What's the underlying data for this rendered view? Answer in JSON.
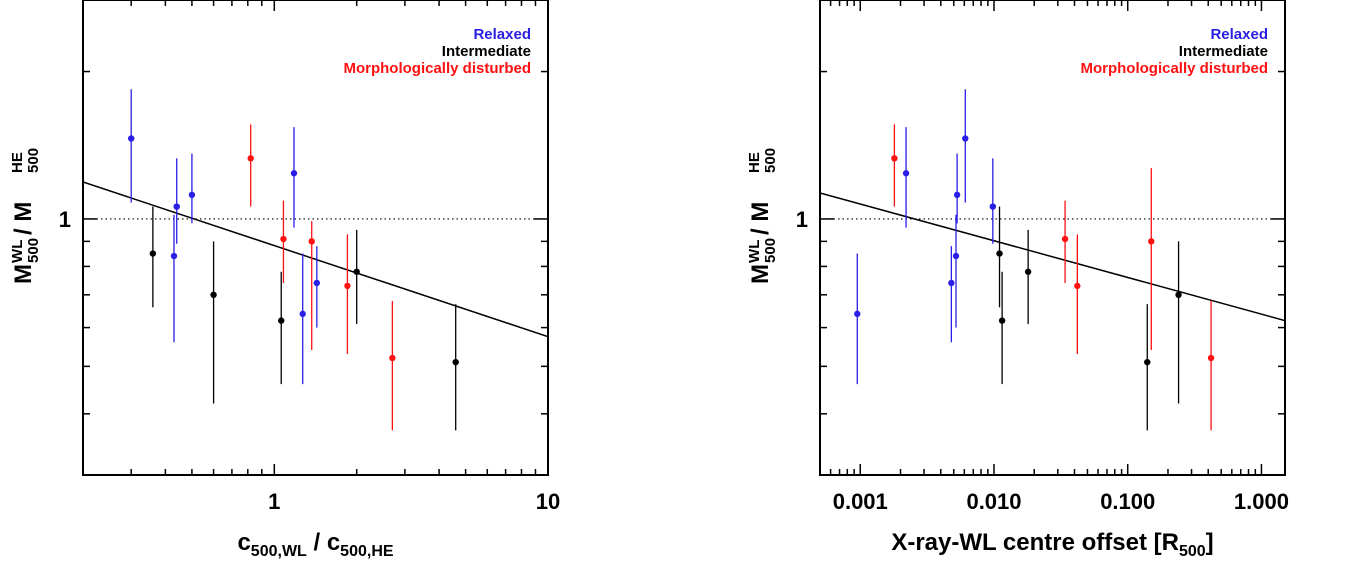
{
  "chart_data": [
    {
      "type": "scatter",
      "xscale": "log",
      "yscale": "log",
      "xlim": [
        0.2,
        10
      ],
      "ylim": [
        0.3,
        2.8
      ],
      "x_ticks": [
        1,
        10
      ],
      "x_tick_labels": [
        "1",
        "10"
      ],
      "y_ticks": [
        1
      ],
      "y_tick_labels": [
        "1"
      ],
      "xlabel": {
        "main": "c",
        "sub1": "500,WL",
        "mid": " / c",
        "sub2": "500,HE"
      },
      "ylabel": {
        "m1": "M",
        "sup1": "WL",
        "sub1": "500",
        "mid": "  / M",
        "sup2": "HE",
        "sub2": "500"
      },
      "reference_line_y": 1,
      "fit_line": {
        "x": [
          0.2,
          10
        ],
        "y": [
          1.19,
          0.575
        ]
      },
      "legend": [
        {
          "name": "Relaxed",
          "color": "#2a1fe6"
        },
        {
          "name": "Intermediate",
          "color": "#000000"
        },
        {
          "name": "Morphologically disturbed",
          "color": "#ff1111"
        }
      ],
      "legend_position": "top-right",
      "series": [
        {
          "name": "Relaxed",
          "color": "#2a1fe6",
          "points": [
            {
              "x": 0.3,
              "y": 1.46,
              "ylo": 1.08,
              "yhi": 1.84
            },
            {
              "x": 0.43,
              "y": 0.84,
              "ylo": 0.56,
              "yhi": 1.02
            },
            {
              "x": 0.44,
              "y": 1.06,
              "ylo": 0.89,
              "yhi": 1.33
            },
            {
              "x": 0.5,
              "y": 1.12,
              "ylo": 0.98,
              "yhi": 1.36
            },
            {
              "x": 1.18,
              "y": 1.24,
              "ylo": 0.96,
              "yhi": 1.54
            },
            {
              "x": 1.27,
              "y": 0.64,
              "ylo": 0.46,
              "yhi": 0.85
            },
            {
              "x": 1.43,
              "y": 0.74,
              "ylo": 0.6,
              "yhi": 0.88
            }
          ]
        },
        {
          "name": "Intermediate",
          "color": "#000000",
          "points": [
            {
              "x": 0.36,
              "y": 0.85,
              "ylo": 0.66,
              "yhi": 1.06
            },
            {
              "x": 0.6,
              "y": 0.7,
              "ylo": 0.42,
              "yhi": 0.9
            },
            {
              "x": 1.06,
              "y": 0.62,
              "ylo": 0.46,
              "yhi": 0.78
            },
            {
              "x": 2.0,
              "y": 0.78,
              "ylo": 0.61,
              "yhi": 0.95
            },
            {
              "x": 4.6,
              "y": 0.51,
              "ylo": 0.37,
              "yhi": 0.67
            }
          ]
        },
        {
          "name": "Morphologically disturbed",
          "color": "#ff1111",
          "points": [
            {
              "x": 0.82,
              "y": 1.33,
              "ylo": 1.06,
              "yhi": 1.56
            },
            {
              "x": 1.08,
              "y": 0.91,
              "ylo": 0.74,
              "yhi": 1.09
            },
            {
              "x": 1.37,
              "y": 0.9,
              "ylo": 0.54,
              "yhi": 0.99
            },
            {
              "x": 1.85,
              "y": 0.73,
              "ylo": 0.53,
              "yhi": 0.93
            },
            {
              "x": 2.7,
              "y": 0.52,
              "ylo": 0.37,
              "yhi": 0.68
            }
          ]
        }
      ]
    },
    {
      "type": "scatter",
      "xscale": "log",
      "yscale": "log",
      "xlim": [
        0.0005,
        1.5
      ],
      "ylim": [
        0.3,
        2.8
      ],
      "x_ticks": [
        0.001,
        0.01,
        0.1,
        1
      ],
      "x_tick_labels": [
        "0.001",
        "0.010",
        "0.100",
        "1.000"
      ],
      "y_ticks": [
        1
      ],
      "y_tick_labels": [
        "1"
      ],
      "xlabel": {
        "main": "X-ray-WL centre offset [R",
        "sub1": "500",
        "mid": "]",
        "sub2": ""
      },
      "ylabel": {
        "m1": "M",
        "sup1": "WL",
        "sub1": "500",
        "mid": "  / M",
        "sup2": "HE",
        "sub2": "500"
      },
      "reference_line_y": 1,
      "fit_line": {
        "x": [
          0.0005,
          1.5
        ],
        "y": [
          1.13,
          0.62
        ]
      },
      "legend": [
        {
          "name": "Relaxed",
          "color": "#2a1fe6"
        },
        {
          "name": "Intermediate",
          "color": "#000000"
        },
        {
          "name": "Morphologically disturbed",
          "color": "#ff1111"
        }
      ],
      "legend_position": "top-right",
      "series": [
        {
          "name": "Relaxed",
          "color": "#2a1fe6",
          "points": [
            {
              "x": 0.00095,
              "y": 0.64,
              "ylo": 0.46,
              "yhi": 0.85
            },
            {
              "x": 0.0022,
              "y": 1.24,
              "ylo": 0.96,
              "yhi": 1.54
            },
            {
              "x": 0.0048,
              "y": 0.74,
              "ylo": 0.56,
              "yhi": 0.88
            },
            {
              "x": 0.0052,
              "y": 0.84,
              "ylo": 0.6,
              "yhi": 1.02
            },
            {
              "x": 0.0053,
              "y": 1.12,
              "ylo": 0.98,
              "yhi": 1.36
            },
            {
              "x": 0.0061,
              "y": 1.46,
              "ylo": 1.08,
              "yhi": 1.84
            },
            {
              "x": 0.0098,
              "y": 1.06,
              "ylo": 0.89,
              "yhi": 1.33
            }
          ]
        },
        {
          "name": "Intermediate",
          "color": "#000000",
          "points": [
            {
              "x": 0.011,
              "y": 0.85,
              "ylo": 0.66,
              "yhi": 1.06
            },
            {
              "x": 0.0115,
              "y": 0.62,
              "ylo": 0.46,
              "yhi": 0.78
            },
            {
              "x": 0.018,
              "y": 0.78,
              "ylo": 0.61,
              "yhi": 0.95
            },
            {
              "x": 0.14,
              "y": 0.51,
              "ylo": 0.37,
              "yhi": 0.67
            },
            {
              "x": 0.24,
              "y": 0.7,
              "ylo": 0.42,
              "yhi": 0.9
            }
          ]
        },
        {
          "name": "Morphologically disturbed",
          "color": "#ff1111",
          "points": [
            {
              "x": 0.0018,
              "y": 1.33,
              "ylo": 1.06,
              "yhi": 1.56
            },
            {
              "x": 0.034,
              "y": 0.91,
              "ylo": 0.74,
              "yhi": 1.09
            },
            {
              "x": 0.042,
              "y": 0.73,
              "ylo": 0.53,
              "yhi": 0.93
            },
            {
              "x": 0.15,
              "y": 0.9,
              "ylo": 0.54,
              "yhi": 1.27
            },
            {
              "x": 0.42,
              "y": 0.52,
              "ylo": 0.37,
              "yhi": 0.68
            }
          ]
        }
      ]
    }
  ]
}
